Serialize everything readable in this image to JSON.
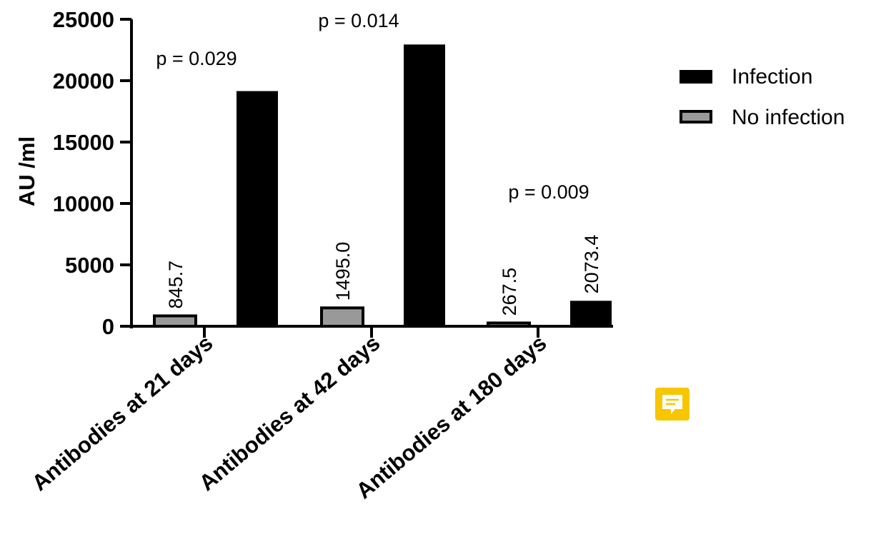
{
  "chart_data": {
    "type": "bar",
    "title": "",
    "xlabel": "",
    "ylabel": "AU /ml",
    "ylim": [
      0,
      25000
    ],
    "yticks": [
      "0",
      "5000",
      "10000",
      "15000",
      "20000",
      "25000"
    ],
    "yticks_values": [
      0,
      5000,
      10000,
      15000,
      20000,
      25000
    ],
    "categories": [
      "Antibodies at 21 days",
      "Antibodies at 42 days",
      "Antibodies at 180 days"
    ],
    "series": [
      {
        "name": "No infection",
        "color": "#999999",
        "values": [
          845.7,
          1495.0,
          267.5
        ],
        "labels": [
          "845.7",
          "1495.0",
          "267.5"
        ]
      },
      {
        "name": "Infection",
        "color": "#000000",
        "values": [
          19152.4,
          22945.5,
          2073.4
        ],
        "labels": [
          "19152.4",
          "22945.5",
          "2073.4"
        ]
      }
    ],
    "annotations": [
      "p = 0.029",
      "p = 0.014",
      "p = 0.009"
    ],
    "legend": [
      "Infection",
      "No infection"
    ],
    "legend_position": "top-right",
    "grid": false
  },
  "comment_icon": "comment-icon"
}
